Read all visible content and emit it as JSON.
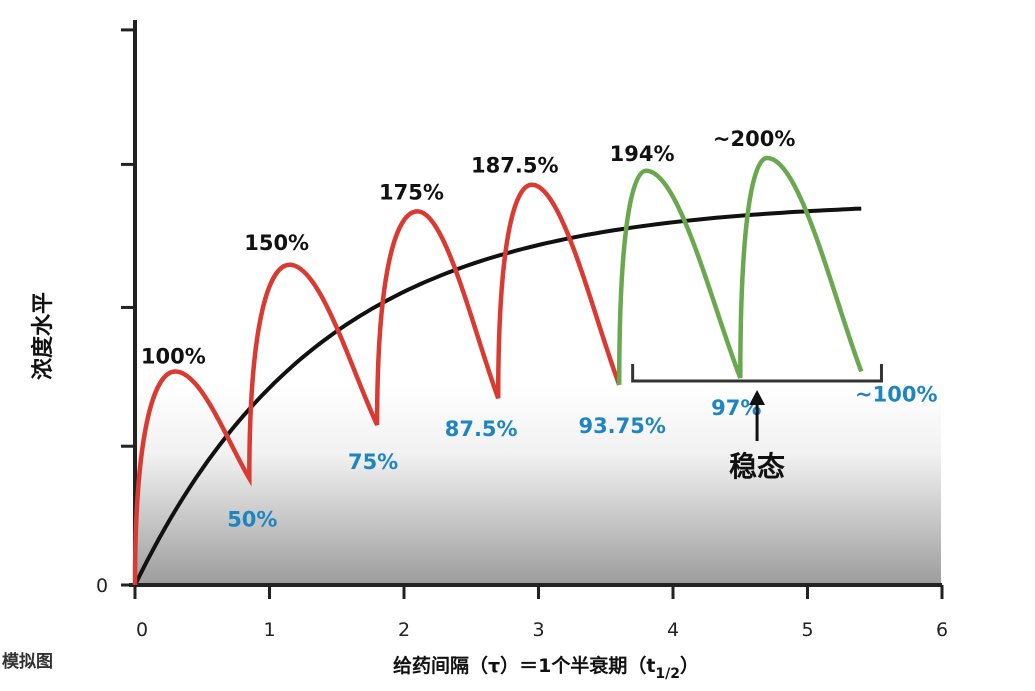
{
  "chart_data": {
    "type": "line",
    "xlabel": "给药间隔（τ）＝1个半衰期（t",
    "xlabel_sub": "1/2",
    "xlabel_close": "）",
    "ylabel": "浓度水平",
    "corner_note": "模拟图",
    "x_ticks": [
      "0",
      "1",
      "2",
      "3",
      "4",
      "5",
      "6"
    ],
    "y_ticks": [
      "0"
    ],
    "xlim": [
      0,
      6
    ],
    "ylim": [
      0,
      2.25
    ],
    "grid": false,
    "colors": {
      "accumulation": "#d93a31",
      "steady_state": "#6aa84f",
      "average_curve": "#111111",
      "trough_text": "#1d86c0",
      "peak_text": "#111111"
    },
    "series": [
      {
        "points": [
          {
            "x": 0,
            "y": 0
          },
          {
            "x": 0.3,
            "y": 1.0
          },
          {
            "x": 0.85,
            "y": 0.5
          },
          {
            "x": 1.15,
            "y": 1.5
          },
          {
            "x": 1.8,
            "y": 0.75
          },
          {
            "x": 2.1,
            "y": 1.75
          },
          {
            "x": 2.7,
            "y": 0.875
          },
          {
            "x": 2.95,
            "y": 1.875
          },
          {
            "x": 3.6,
            "y": 0.9375
          }
        ]
      },
      {
        "points": [
          {
            "x": 3.6,
            "y": 0.9375
          },
          {
            "x": 3.8,
            "y": 1.94
          },
          {
            "x": 4.5,
            "y": 0.97
          },
          {
            "x": 4.7,
            "y": 2.0
          },
          {
            "x": 5.4,
            "y": 1.0
          }
        ]
      },
      {
        "curve": {
          "x_start": 0,
          "x_end": 5.4,
          "plateau": 1.8,
          "rate": 0.72
        }
      }
    ],
    "annotations": {
      "peaks": [
        {
          "x": 0.3,
          "y": 1.0,
          "text": "100%"
        },
        {
          "x": 1.15,
          "y": 1.5,
          "text": "150%"
        },
        {
          "x": 2.1,
          "y": 1.75,
          "text": "175%"
        },
        {
          "x": 2.95,
          "y": 1.875,
          "text": "187.5%"
        },
        {
          "x": 3.8,
          "y": 1.94,
          "text": "194%"
        },
        {
          "x": 4.7,
          "y": 2.0,
          "text": "~200%"
        }
      ],
      "troughs": [
        {
          "x": 0.85,
          "y": 0.5,
          "text": "50%"
        },
        {
          "x": 1.8,
          "y": 0.75,
          "text": "75%"
        },
        {
          "x": 2.7,
          "y": 0.875,
          "text": "87.5%"
        },
        {
          "x": 3.6,
          "y": 0.9375,
          "text": "93.75%"
        },
        {
          "x": 4.5,
          "y": 0.97,
          "text": "97%"
        },
        {
          "x": 5.4,
          "y": 1.0,
          "text": "~100%"
        }
      ],
      "steady_state": {
        "label": "稳态",
        "x_from": 3.7,
        "x_to": 5.55
      }
    }
  }
}
